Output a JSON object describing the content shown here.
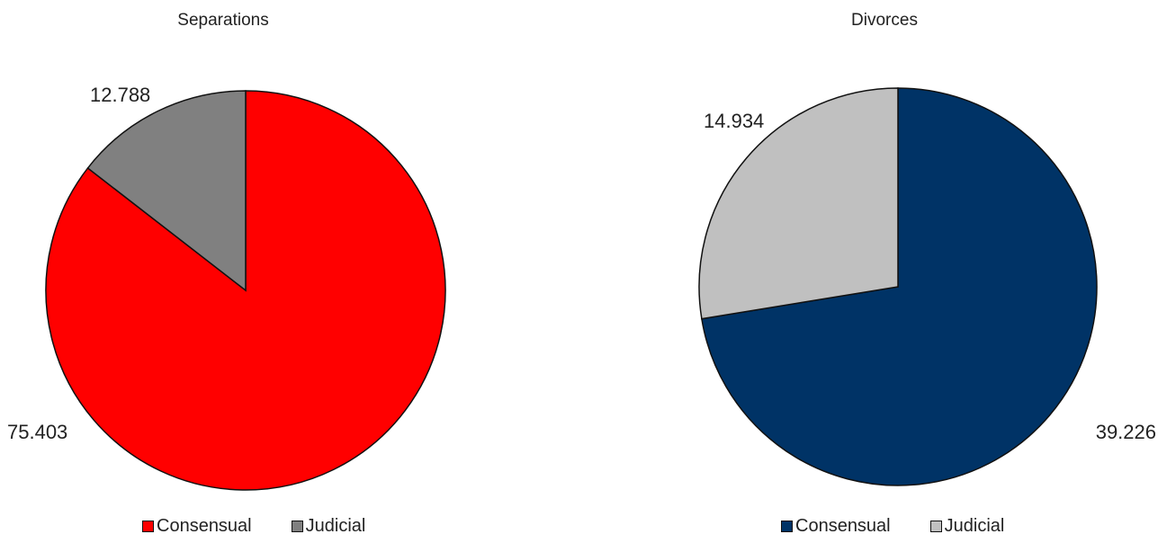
{
  "chart_data": [
    {
      "type": "pie",
      "title": "Separations",
      "series": [
        {
          "label": "Consensual",
          "value": 75.403,
          "value_label": "75.403",
          "color": "#ff0000"
        },
        {
          "label": "Judicial",
          "value": 12.788,
          "value_label": "12.788",
          "color": "#808080"
        }
      ],
      "legend_position": "bottom"
    },
    {
      "type": "pie",
      "title": "Divorces",
      "series": [
        {
          "label": "Consensual",
          "value": 39.226,
          "value_label": "39.226",
          "color": "#003366"
        },
        {
          "label": "Judicial",
          "value": 14.934,
          "value_label": "14.934",
          "color": "#c0c0c0"
        }
      ],
      "legend_position": "bottom"
    }
  ]
}
